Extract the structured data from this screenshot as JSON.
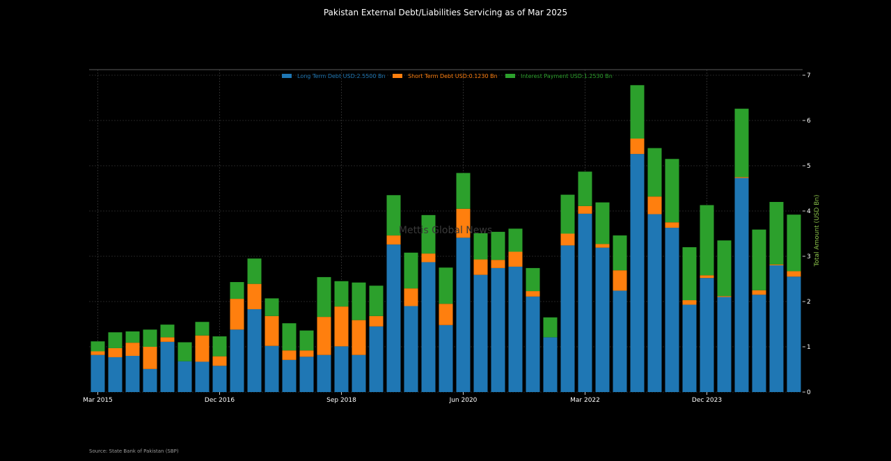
{
  "chart_data": {
    "type": "bar",
    "stacked": true,
    "title": "Pakistan External Debt/Liabilities Servicing as of Mar 2025",
    "ylabel": "Total Amount (USD Bn)",
    "xlabel": "",
    "ylim": [
      0,
      7
    ],
    "yticks": [
      0,
      1,
      2,
      3,
      4,
      5,
      6,
      7
    ],
    "y_axis_side": "right",
    "grid": true,
    "legend_position": "top-center",
    "x_tick_labels": [
      {
        "index": 0,
        "label": "Mar 2015"
      },
      {
        "index": 7,
        "label": "Dec 2016"
      },
      {
        "index": 14,
        "label": "Sep 2018"
      },
      {
        "index": 21,
        "label": "Jun 2020"
      },
      {
        "index": 28,
        "label": "Mar 2022"
      },
      {
        "index": 35,
        "label": "Dec 2023"
      }
    ],
    "categories": [
      "Mar 2015",
      "Jun 2015",
      "Sep 2015",
      "Dec 2015",
      "Mar 2016",
      "Jun 2016",
      "Sep 2016",
      "Dec 2016",
      "Mar 2017",
      "Jun 2017",
      "Sep 2017",
      "Dec 2017",
      "Mar 2018",
      "Jun 2018",
      "Sep 2018",
      "Dec 2018",
      "Mar 2019",
      "Jun 2019",
      "Sep 2019",
      "Dec 2019",
      "Mar 2020",
      "Jun 2020",
      "Sep 2020",
      "Dec 2020",
      "Mar 2021",
      "Jun 2021",
      "Sep 2021",
      "Dec 2021",
      "Mar 2022",
      "Jun 2022",
      "Sep 2022",
      "Dec 2022",
      "Mar 2023",
      "Jun 2023",
      "Sep 2023",
      "Dec 2023",
      "Mar 2024",
      "Jun 2024",
      "Sep 2024",
      "Dec 2024",
      "Mar 2025"
    ],
    "series": [
      {
        "name": "Long Term Debt USD:2.5500 Bn",
        "color": "#1f77b4",
        "values": [
          0.82,
          0.77,
          0.8,
          0.51,
          1.11,
          0.68,
          0.67,
          0.58,
          1.38,
          1.83,
          1.02,
          0.71,
          0.78,
          0.82,
          1.01,
          0.82,
          1.45,
          3.26,
          1.9,
          2.87,
          1.48,
          3.41,
          2.59,
          2.74,
          2.77,
          2.11,
          1.21,
          3.24,
          3.94,
          3.19,
          2.24,
          5.26,
          3.93,
          3.63,
          1.93,
          2.52,
          2.1,
          4.73,
          2.15,
          2.8,
          2.55
        ]
      },
      {
        "name": "Short Term Debt USD:0.1230 Bn",
        "color": "#ff7f0e",
        "values": [
          0.08,
          0.2,
          0.29,
          0.49,
          0.1,
          0.0,
          0.58,
          0.21,
          0.68,
          0.56,
          0.66,
          0.21,
          0.14,
          0.84,
          0.88,
          0.77,
          0.23,
          0.2,
          0.39,
          0.19,
          0.47,
          0.64,
          0.34,
          0.18,
          0.33,
          0.12,
          0.0,
          0.26,
          0.17,
          0.08,
          0.45,
          0.34,
          0.39,
          0.12,
          0.1,
          0.06,
          0.02,
          0.02,
          0.1,
          0.02,
          0.12
        ]
      },
      {
        "name": "Interest Payment USD:1.2530 Bn",
        "color": "#2ca02c",
        "values": [
          0.22,
          0.35,
          0.25,
          0.38,
          0.28,
          0.42,
          0.3,
          0.44,
          0.37,
          0.56,
          0.39,
          0.6,
          0.44,
          0.88,
          0.56,
          0.83,
          0.67,
          0.89,
          0.79,
          0.85,
          0.8,
          0.79,
          0.58,
          0.62,
          0.51,
          0.51,
          0.44,
          0.86,
          0.76,
          0.92,
          0.77,
          1.18,
          1.07,
          1.4,
          1.17,
          1.55,
          1.23,
          1.51,
          1.34,
          1.38,
          1.25
        ]
      }
    ],
    "watermark": "Mettis Global News",
    "source": "Source: State Bank of Pakistan (SBP)"
  },
  "colors": {
    "background": "#000000",
    "grid": "#4a4a4a",
    "axis_text": "#ffffff",
    "ylabel": "#8bc34a"
  }
}
